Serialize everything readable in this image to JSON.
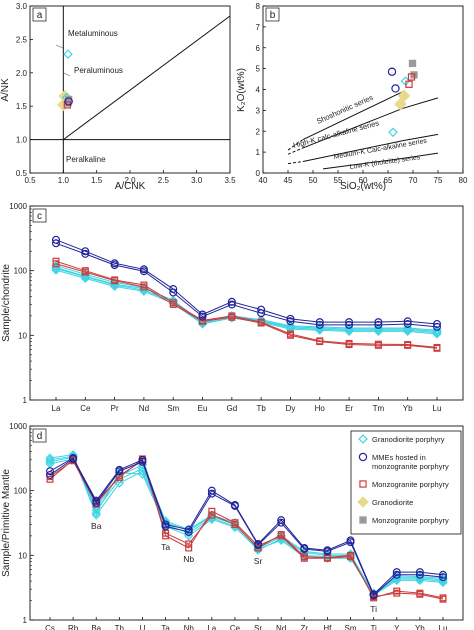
{
  "colors": {
    "cyan": "#3fd4e4",
    "blue": "#22249a",
    "red": "#cc3b3b",
    "yellow": "#e8da8c",
    "gray": "#9a9a9a",
    "axis": "#111111"
  },
  "chart_data": [
    {
      "id": "a",
      "panel_label": "a",
      "type": "scatter",
      "xlabel": "A/CNK",
      "ylabel": "A/NK",
      "xlim": [
        0.5,
        3.5
      ],
      "ylim": [
        0.5,
        3.0
      ],
      "xticks": [
        "0.5",
        "1.0",
        "1.5",
        "2.0",
        "2.5",
        "3.0",
        "3.5"
      ],
      "yticks": [
        "0.5",
        "1.0",
        "1.5",
        "2.0",
        "2.5",
        "3.0"
      ],
      "field_labels": {
        "metaluminous": "Metaluminous",
        "peraluminous": "Peraluminous",
        "peralkaline": "Peralkaline"
      },
      "points": [
        {
          "group": "granodiorite",
          "x": 1.02,
          "y": 1.65
        },
        {
          "group": "granodiorite",
          "x": 1.0,
          "y": 1.52
        },
        {
          "group": "granodiorite_porphyry",
          "x": 1.07,
          "y": 2.28
        },
        {
          "group": "granodiorite_porphyry",
          "x": 1.05,
          "y": 1.63
        },
        {
          "group": "mme",
          "x": 1.08,
          "y": 1.57
        },
        {
          "group": "monzogranite_porphyry",
          "x": 1.06,
          "y": 1.52
        },
        {
          "group": "monzogranite",
          "x": 1.08,
          "y": 1.6
        },
        {
          "group": "monzogranite",
          "x": 1.07,
          "y": 1.55
        }
      ]
    },
    {
      "id": "b",
      "panel_label": "b",
      "type": "scatter",
      "xlabel": "SiO₂(wt%)",
      "ylabel": "K₂O(wt%)",
      "xlim": [
        40,
        80
      ],
      "ylim": [
        0,
        8
      ],
      "xticks": [
        "40",
        "45",
        "50",
        "55",
        "60",
        "65",
        "70",
        "75",
        "80"
      ],
      "yticks": [
        "0",
        "1",
        "2",
        "3",
        "4",
        "5",
        "6",
        "7",
        "8"
      ],
      "series_labels": {
        "shoshonitic": "Shoshonitic series",
        "high_k": "High-K calc-alkaline series",
        "medium_k": "Medium-K Calc-alkaline series",
        "low_k": "Low-K (tholeiite) series"
      },
      "points": [
        {
          "group": "granodiorite",
          "x": 67.5,
          "y": 3.3
        },
        {
          "group": "granodiorite",
          "x": 68.2,
          "y": 3.7
        },
        {
          "group": "granodiorite_porphyry",
          "x": 66.0,
          "y": 1.95
        },
        {
          "group": "granodiorite_porphyry",
          "x": 68.5,
          "y": 4.4
        },
        {
          "group": "mme",
          "x": 65.8,
          "y": 4.85
        },
        {
          "group": "mme",
          "x": 66.5,
          "y": 4.05
        },
        {
          "group": "monzogranite_porphyry",
          "x": 69.2,
          "y": 4.25
        },
        {
          "group": "monzogranite_porphyry",
          "x": 69.7,
          "y": 4.6
        },
        {
          "group": "monzogranite",
          "x": 69.9,
          "y": 5.25
        },
        {
          "group": "monzogranite",
          "x": 70.2,
          "y": 4.7
        }
      ]
    },
    {
      "id": "c",
      "panel_label": "c",
      "type": "line",
      "ylabel": "Sample/chondrite",
      "yscale": "log",
      "ylim": [
        1,
        1000
      ],
      "yticks": [
        "1",
        "10",
        "100",
        "1000"
      ],
      "categories": [
        "La",
        "Ce",
        "Pr",
        "Nd",
        "Sm",
        "Eu",
        "Gd",
        "Tb",
        "Dy",
        "Ho",
        "Er",
        "Tm",
        "Yb",
        "Lu"
      ],
      "series": [
        {
          "group": "mme",
          "values": [
            300,
            200,
            130,
            105,
            52,
            21,
            33,
            25,
            18,
            16,
            16,
            16,
            16.5,
            15
          ]
        },
        {
          "group": "mme",
          "values": [
            265,
            182,
            122,
            98,
            46,
            19.5,
            30,
            22,
            16.5,
            14.5,
            14.5,
            14.5,
            15,
            13.5
          ]
        },
        {
          "group": "monzogranite_porphyry",
          "values": [
            140,
            100,
            72,
            60,
            32,
            17,
            20,
            16,
            10.5,
            8.2,
            7.5,
            7.3,
            7.2,
            6.5
          ]
        },
        {
          "group": "monzogranite_porphyry",
          "values": [
            128,
            95,
            70,
            56,
            30,
            16.5,
            19,
            15.5,
            10,
            8,
            7.2,
            7,
            7,
            6.3
          ]
        },
        {
          "group": "granodiorite_porphyry",
          "values": [
            112,
            82,
            62,
            53,
            35,
            15.5,
            20,
            17,
            13.5,
            13,
            12.5,
            12.5,
            12.5,
            11.5
          ]
        },
        {
          "group": "granodiorite_porphyry",
          "values": [
            108,
            80,
            60,
            50,
            33,
            15,
            19,
            16.5,
            13,
            12.5,
            12,
            12,
            12,
            11
          ]
        },
        {
          "group": "granodiorite_porphyry",
          "values": [
            102,
            76,
            57,
            48,
            31,
            15,
            18.5,
            16,
            12.5,
            12,
            11.5,
            11.5,
            11.5,
            10.5
          ]
        },
        {
          "group": "granodiorite_porphyry",
          "values": [
            120,
            88,
            66,
            55,
            34,
            16,
            20,
            17.5,
            14,
            13.5,
            13,
            13,
            13,
            12
          ]
        }
      ]
    },
    {
      "id": "d",
      "panel_label": "d",
      "type": "line",
      "ylabel": "Sample/Primitive Mantle",
      "yscale": "log",
      "ylim": [
        1,
        1000
      ],
      "yticks": [
        "1",
        "10",
        "100",
        "1000"
      ],
      "categories": [
        "Cs",
        "Rb",
        "Ba",
        "Th",
        "U",
        "Ta",
        "Nb",
        "La",
        "Ce",
        "Sr",
        "Nd",
        "Zr",
        "Hf",
        "Sm",
        "Ti",
        "Y",
        "Yb",
        "Lu"
      ],
      "annotations": [
        {
          "text": "Ba",
          "category": "Ba"
        },
        {
          "text": "Ta",
          "category": "Ta"
        },
        {
          "text": "Nb",
          "category": "Nb"
        },
        {
          "text": "Sr",
          "category": "Sr"
        },
        {
          "text": "Ti",
          "category": "Ti"
        }
      ],
      "series": [
        {
          "group": "mme",
          "values": [
            200,
            320,
            70,
            210,
            300,
            30,
            25,
            100,
            60,
            15,
            35,
            13,
            12,
            17,
            2.5,
            5.5,
            5.5,
            5
          ]
        },
        {
          "group": "mme",
          "values": [
            175,
            310,
            65,
            200,
            280,
            28,
            23,
            90,
            58,
            14.5,
            32,
            12.5,
            11.5,
            16,
            2.4,
            5,
            5,
            4.6
          ]
        },
        {
          "group": "monzogranite_porphyry",
          "values": [
            150,
            300,
            68,
            160,
            310,
            20,
            13,
            48,
            32,
            14,
            20,
            9,
            9,
            9.5,
            2.3,
            2.6,
            2.5,
            2.1
          ]
        },
        {
          "group": "monzogranite_porphyry",
          "values": [
            165,
            290,
            62,
            170,
            290,
            22,
            15,
            42,
            30,
            13,
            21,
            9.5,
            9.2,
            10,
            2.2,
            2.8,
            2.6,
            2.2
          ]
        },
        {
          "group": "granodiorite_porphyry",
          "values": [
            300,
            340,
            42,
            130,
            200,
            30,
            22,
            38,
            28,
            12,
            18,
            10,
            9.5,
            9.5,
            2.5,
            4.3,
            4.3,
            4
          ]
        },
        {
          "group": "granodiorite_porphyry",
          "values": [
            280,
            330,
            50,
            150,
            220,
            32,
            24,
            40,
            30,
            13,
            19,
            11,
            10,
            10,
            2.6,
            4.5,
            4.5,
            4.2
          ]
        },
        {
          "group": "granodiorite_porphyry",
          "values": [
            260,
            310,
            55,
            170,
            250,
            34,
            25,
            42,
            32,
            14,
            20,
            11.5,
            10.5,
            10.5,
            2.5,
            4.8,
            4.7,
            4.4
          ]
        },
        {
          "group": "granodiorite_porphyry",
          "values": [
            320,
            360,
            45,
            190,
            180,
            28,
            20,
            36,
            27,
            12.5,
            17,
            9.5,
            9,
            9,
            2.4,
            4.1,
            4.1,
            3.8
          ]
        }
      ]
    }
  ],
  "legend": {
    "entries": [
      {
        "group": "granodiorite_porphyry",
        "label_lines": [
          "Granodiorite porphyry"
        ]
      },
      {
        "group": "mme",
        "label_lines": [
          "MMEs hosted in",
          "monzogranite porphyry"
        ]
      },
      {
        "group": "monzogranite_porphyry",
        "label_lines": [
          "Monzogranite porphyry"
        ]
      },
      {
        "group": "granodiorite",
        "label_lines": [
          "Granodiorite"
        ]
      },
      {
        "group": "monzogranite",
        "label_lines": [
          "Monzogranite porphyry"
        ]
      }
    ]
  }
}
